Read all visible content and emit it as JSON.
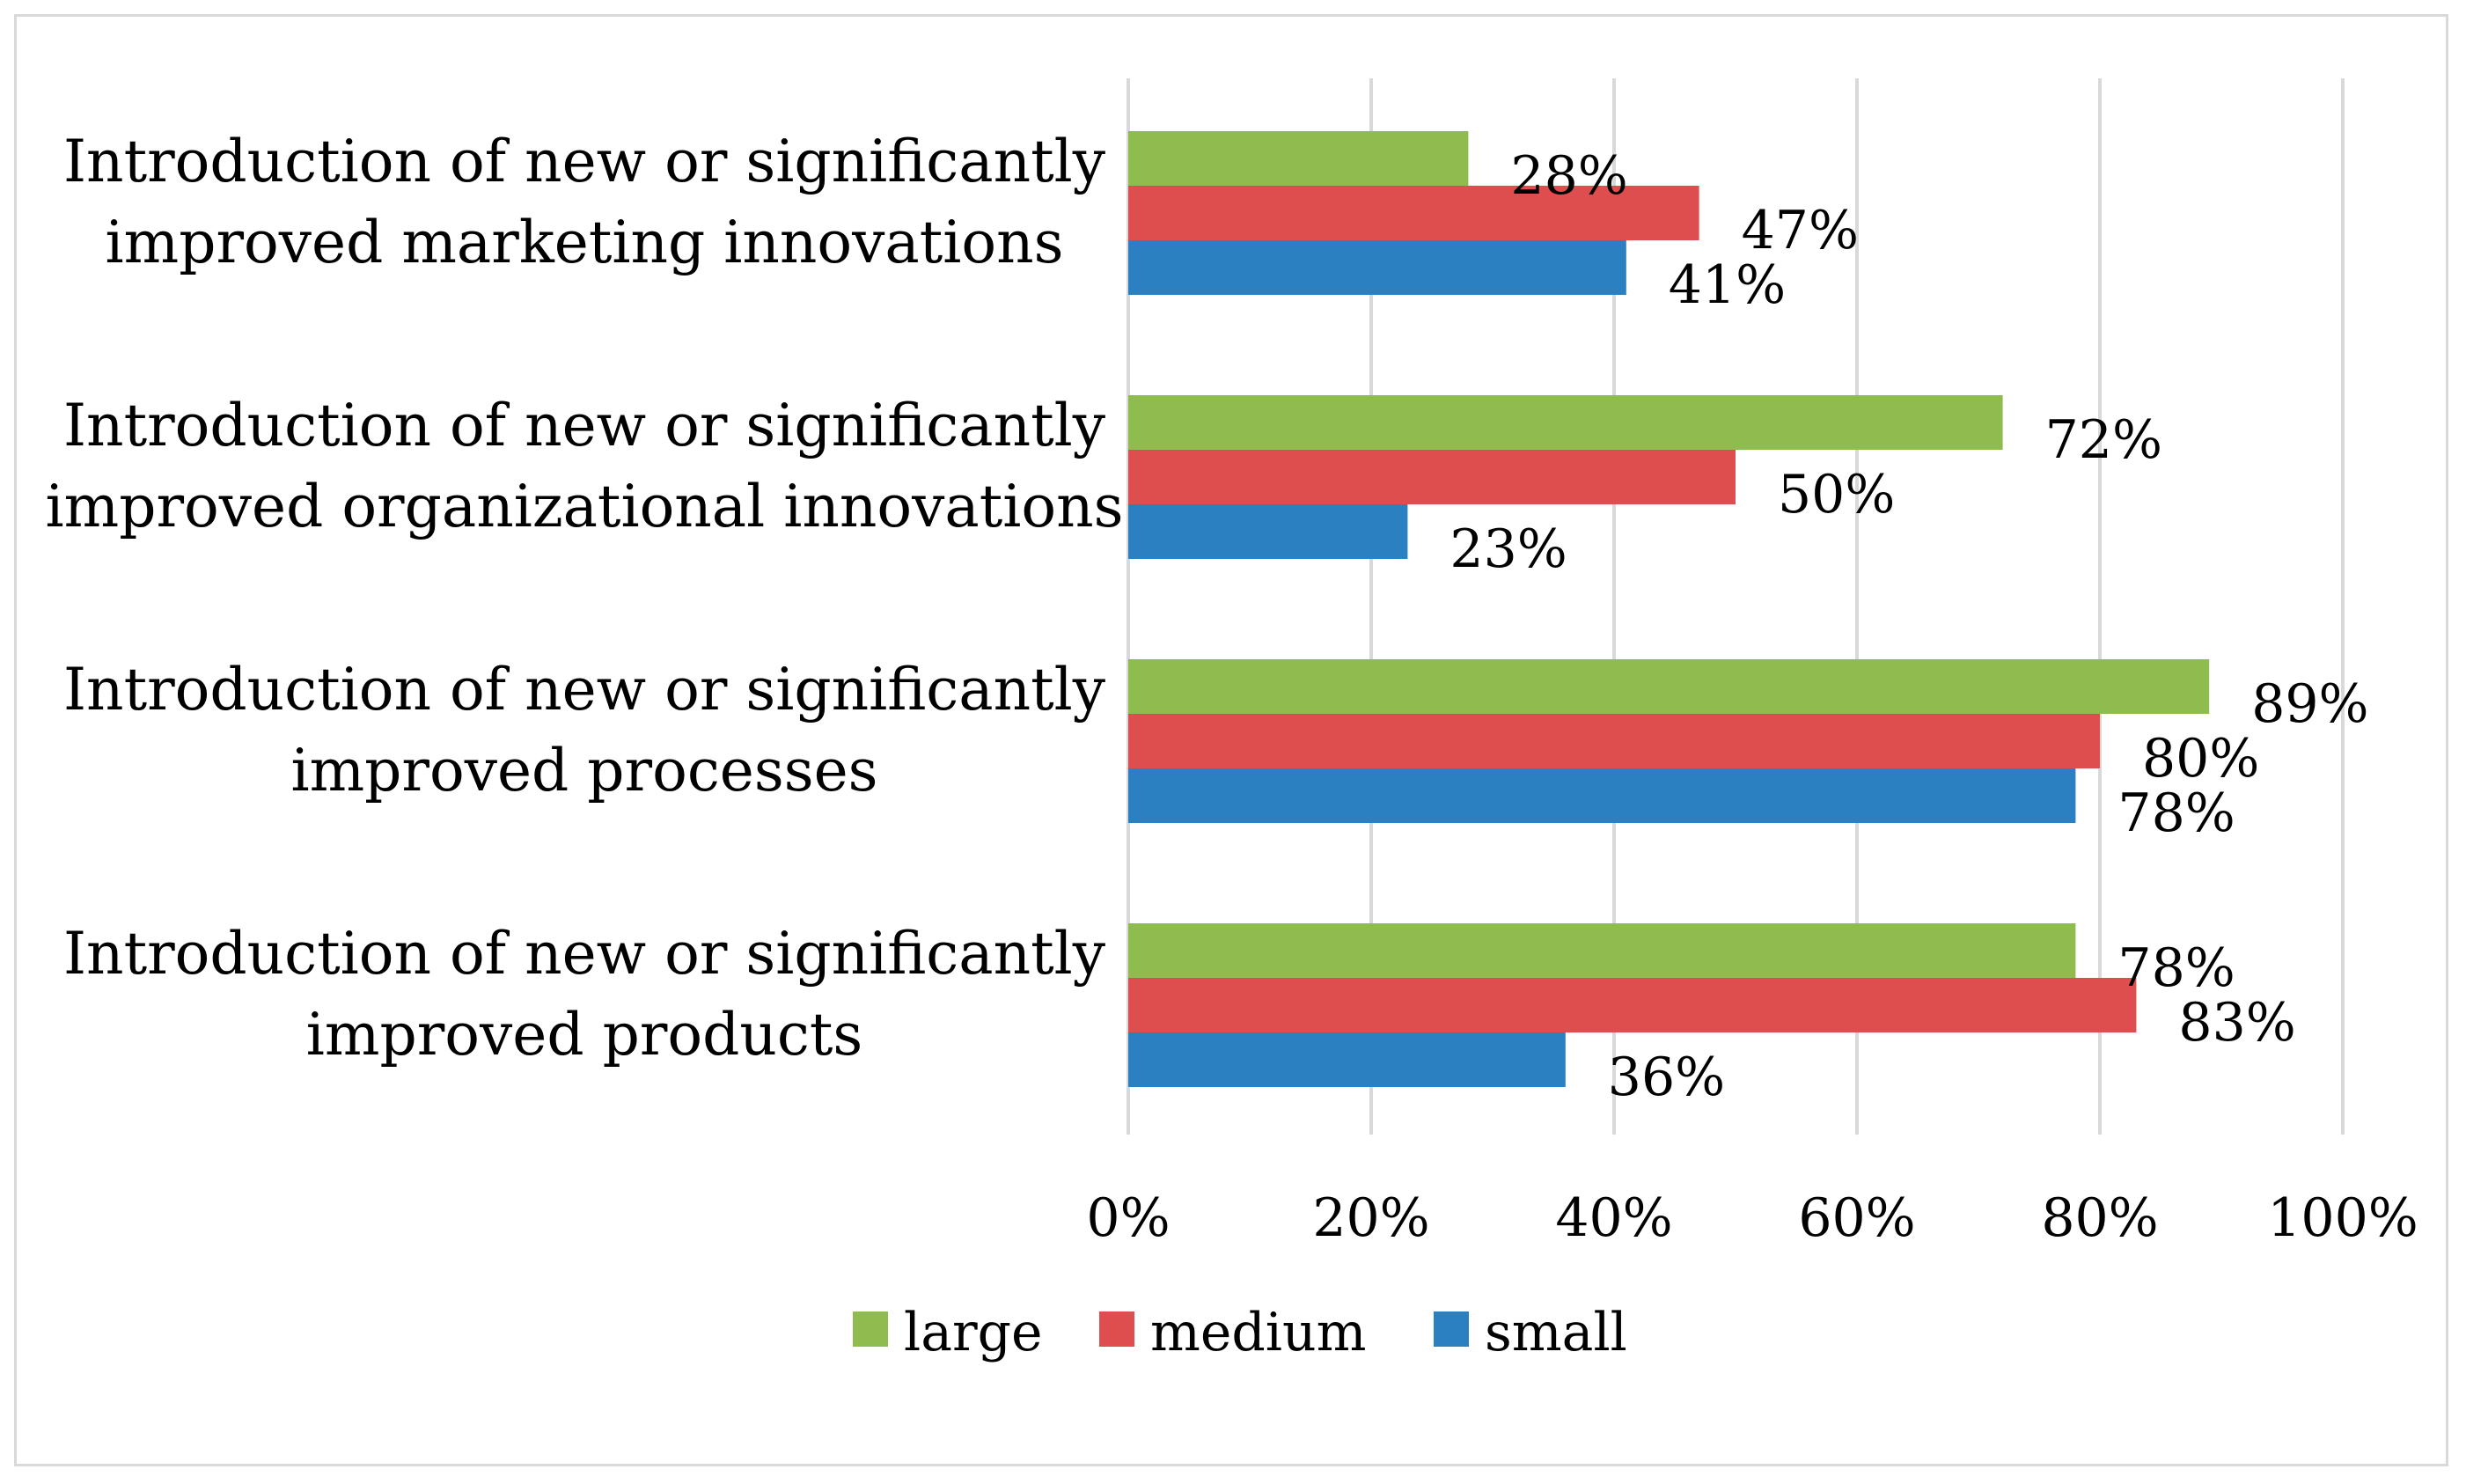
{
  "chart_data": {
    "type": "bar",
    "orientation": "horizontal",
    "title": "",
    "xlabel": "",
    "ylabel": "",
    "xlim": [
      0,
      100
    ],
    "x_ticks": [
      "0%",
      "20%",
      "40%",
      "60%",
      "80%",
      "100%"
    ],
    "grid": true,
    "legend_position": "bottom",
    "categories": [
      [
        "Introduction of new or significantly",
        "improved marketing innovations"
      ],
      [
        "Introduction of new or significantly",
        "improved organizational innovations"
      ],
      [
        "Introduction of new or significantly",
        "improved processes"
      ],
      [
        "Introduction of new or significantly",
        "improved products"
      ]
    ],
    "series": [
      {
        "name": "large",
        "color": "#8FBC4F",
        "values": [
          28,
          72,
          89,
          78
        ],
        "labels": [
          "28%",
          "72%",
          "89%",
          "78%"
        ]
      },
      {
        "name": "medium",
        "color": "#DE4E4E",
        "values": [
          47,
          50,
          80,
          83
        ],
        "labels": [
          "47%",
          "50%",
          "80%",
          "83%"
        ]
      },
      {
        "name": "small",
        "color": "#2A80C0",
        "values": [
          41,
          23,
          78,
          36
        ],
        "labels": [
          "41%",
          "23%",
          "78%",
          "36%"
        ]
      }
    ]
  }
}
